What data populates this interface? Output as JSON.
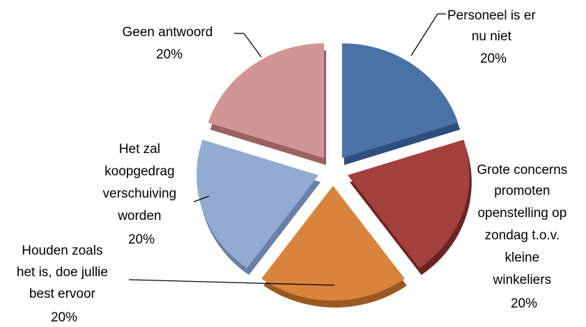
{
  "chart_data": {
    "type": "pie",
    "title": "",
    "exploded": true,
    "three_d": true,
    "show_percentages": true,
    "categories": [
      "Personeel is er nu niet",
      "Grote concerns promoten openstelling op zondag t.o.v. kleine winkeliers",
      "Houden zoals het is, doe jullie best ervoor",
      "Het zal koopgedrag verschuiving worden",
      "Geen antwoord"
    ],
    "values": [
      20,
      20,
      20,
      20,
      20
    ],
    "slices": [
      {
        "label_lines": [
          "Personeel is er",
          "nu niet"
        ],
        "value": 20,
        "percent_label": "20%",
        "color": "#4a72a6",
        "side_color": "#2d4f7e"
      },
      {
        "label_lines": [
          "Grote concerns",
          "promoten",
          "openstelling op",
          "zondag t.o.v.",
          "kleine",
          "winkeliers"
        ],
        "value": 20,
        "percent_label": "20%",
        "color": "#a3403e",
        "side_color": "#6b2422"
      },
      {
        "label_lines": [
          "Houden zoals",
          "het is, doe jullie",
          "best ervoor"
        ],
        "value": 20,
        "percent_label": "20%",
        "color": "#d9843d",
        "side_color": "#9a5a22"
      },
      {
        "label_lines": [
          "Het zal",
          "koopgedrag",
          "verschuiving",
          "worden"
        ],
        "value": 20,
        "percent_label": "20%",
        "color": "#94abd1",
        "side_color": "#6b80a8"
      },
      {
        "label_lines": [
          "Geen antwoord"
        ],
        "value": 20,
        "percent_label": "20%",
        "color": "#d19595",
        "side_color": "#9a6262"
      }
    ]
  }
}
